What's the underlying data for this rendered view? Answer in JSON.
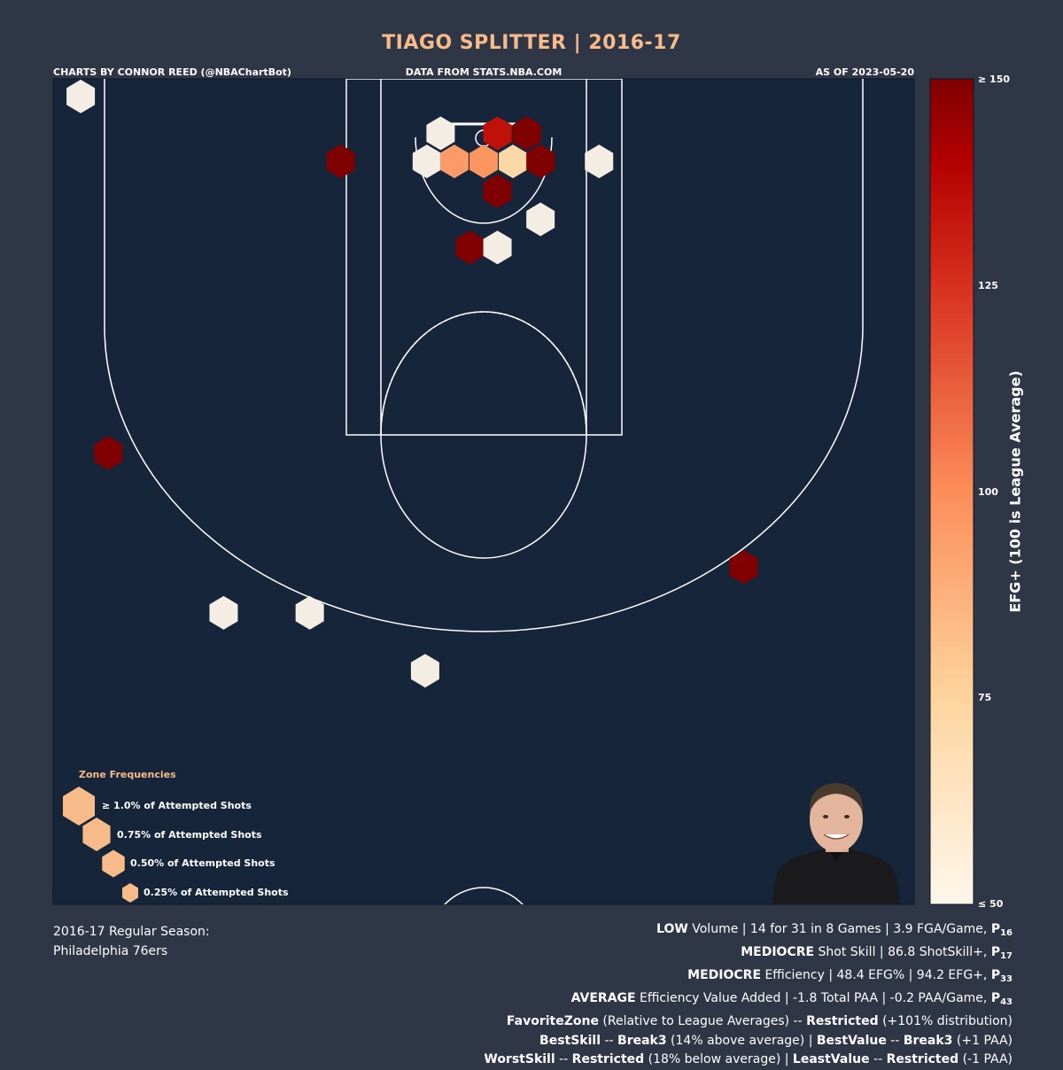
{
  "header": {
    "title": "TIAGO SPLITTER | 2016-17",
    "credit": "CHARTS BY CONNOR REED (@NBAChartBot)",
    "source": "DATA FROM STATS.NBA.COM",
    "asof": "AS OF 2023-05-20"
  },
  "legend": {
    "title": "Zone Frequencies",
    "items": [
      {
        "label": "≥ 1.0% of Attempted Shots"
      },
      {
        "label": "0.75% of Attempted Shots"
      },
      {
        "label": "0.50% of Attempted Shots"
      },
      {
        "label": "0.25% of Attempted Shots"
      }
    ]
  },
  "colorbar": {
    "label": "EFG+ (100 is League Average)",
    "ticks": [
      "≥ 150",
      "125",
      "100",
      "75",
      "≤ 50"
    ]
  },
  "colors": {
    "background": "#2f3646",
    "court": "#17253a",
    "accent": "#f6bb89",
    "cold": "#f3ede4",
    "hot": "#7f0000"
  },
  "icons": {
    "player_photo": "player-headshot-icon"
  },
  "season": {
    "line1": "2016-17 Regular Season:",
    "line2": "Philadelphia 76ers"
  },
  "stats": {
    "volume": {
      "level": "LOW",
      "text": " Volume | 14 for 31 in 8 Games | 3.9 FGA/Game, ",
      "p": "P",
      "pct": "16"
    },
    "skill": {
      "level": "MEDIOCRE",
      "text": " Shot Skill | 86.8 ShotSkill+, ",
      "p": "P",
      "pct": "17"
    },
    "efficiency": {
      "level": "MEDIOCRE",
      "text": " Efficiency | 48.4 EFG% | 94.2 EFG+, ",
      "p": "P",
      "pct": "33"
    },
    "value": {
      "level": "AVERAGE",
      "text": " Efficiency Value Added | -1.8 Total PAA | -0.2 PAA/Game, ",
      "p": "P",
      "pct": "43"
    },
    "favorite": {
      "k1": "FavoriteZone",
      "t1": " (Relative to League Averages) -- ",
      "k2": "Restricted",
      "t2": " (+101% distribution)"
    },
    "best": {
      "k1": "BestSkill",
      "t1": " -- ",
      "k2": "Break3",
      "t2": " (14% above average) | ",
      "k3": "BestValue",
      "t3": " -- ",
      "k4": "Break3",
      "t4": " (+1 PAA)"
    },
    "worst": {
      "k1": "WorstSkill",
      "t1": " -- ",
      "k2": "Restricted",
      "t2": " (18% below average) | ",
      "k3": "LeastValue",
      "t3": " -- ",
      "k4": "Restricted",
      "t4": " (-1 PAA)"
    }
  },
  "chart_data": {
    "type": "hexbin",
    "description_units": "court feet; x = left/right from basket (-25..25), y = distance from baseline (0..47)",
    "xlim": [
      -25,
      25
    ],
    "ylim": [
      0,
      47
    ],
    "color_metric": "EFG+",
    "color_range": [
      50,
      150
    ],
    "series": [
      {
        "x": -23.4,
        "y": 46.0,
        "efg_plus": 50,
        "freq": 1.0
      },
      {
        "x": -2.5,
        "y": 43.9,
        "efg_plus": 50,
        "freq": 1.0
      },
      {
        "x": 0.8,
        "y": 43.9,
        "efg_plus": 135,
        "freq": 1.0
      },
      {
        "x": 2.5,
        "y": 43.9,
        "efg_plus": 150,
        "freq": 1.0
      },
      {
        "x": -8.3,
        "y": 42.3,
        "efg_plus": 150,
        "freq": 1.0
      },
      {
        "x": -3.3,
        "y": 42.3,
        "efg_plus": 50,
        "freq": 1.0
      },
      {
        "x": -1.7,
        "y": 42.3,
        "efg_plus": 95,
        "freq": 1.0
      },
      {
        "x": 0.0,
        "y": 42.3,
        "efg_plus": 97,
        "freq": 1.0
      },
      {
        "x": 1.7,
        "y": 42.3,
        "efg_plus": 72,
        "freq": 1.0
      },
      {
        "x": 3.3,
        "y": 42.3,
        "efg_plus": 150,
        "freq": 1.0
      },
      {
        "x": 6.7,
        "y": 42.3,
        "efg_plus": 50,
        "freq": 1.0
      },
      {
        "x": 0.8,
        "y": 40.6,
        "efg_plus": 150,
        "freq": 1.0
      },
      {
        "x": 3.3,
        "y": 39.0,
        "efg_plus": 50,
        "freq": 1.0
      },
      {
        "x": -0.8,
        "y": 37.4,
        "efg_plus": 150,
        "freq": 1.0
      },
      {
        "x": 0.8,
        "y": 37.4,
        "efg_plus": 50,
        "freq": 1.0
      },
      {
        "x": -21.8,
        "y": 25.7,
        "efg_plus": 150,
        "freq": 1.0
      },
      {
        "x": 15.1,
        "y": 19.2,
        "efg_plus": 150,
        "freq": 1.0
      },
      {
        "x": -15.1,
        "y": 16.6,
        "efg_plus": 50,
        "freq": 1.0
      },
      {
        "x": -10.1,
        "y": 16.6,
        "efg_plus": 50,
        "freq": 1.0
      },
      {
        "x": -3.4,
        "y": 13.3,
        "efg_plus": 50,
        "freq": 1.0
      }
    ]
  }
}
